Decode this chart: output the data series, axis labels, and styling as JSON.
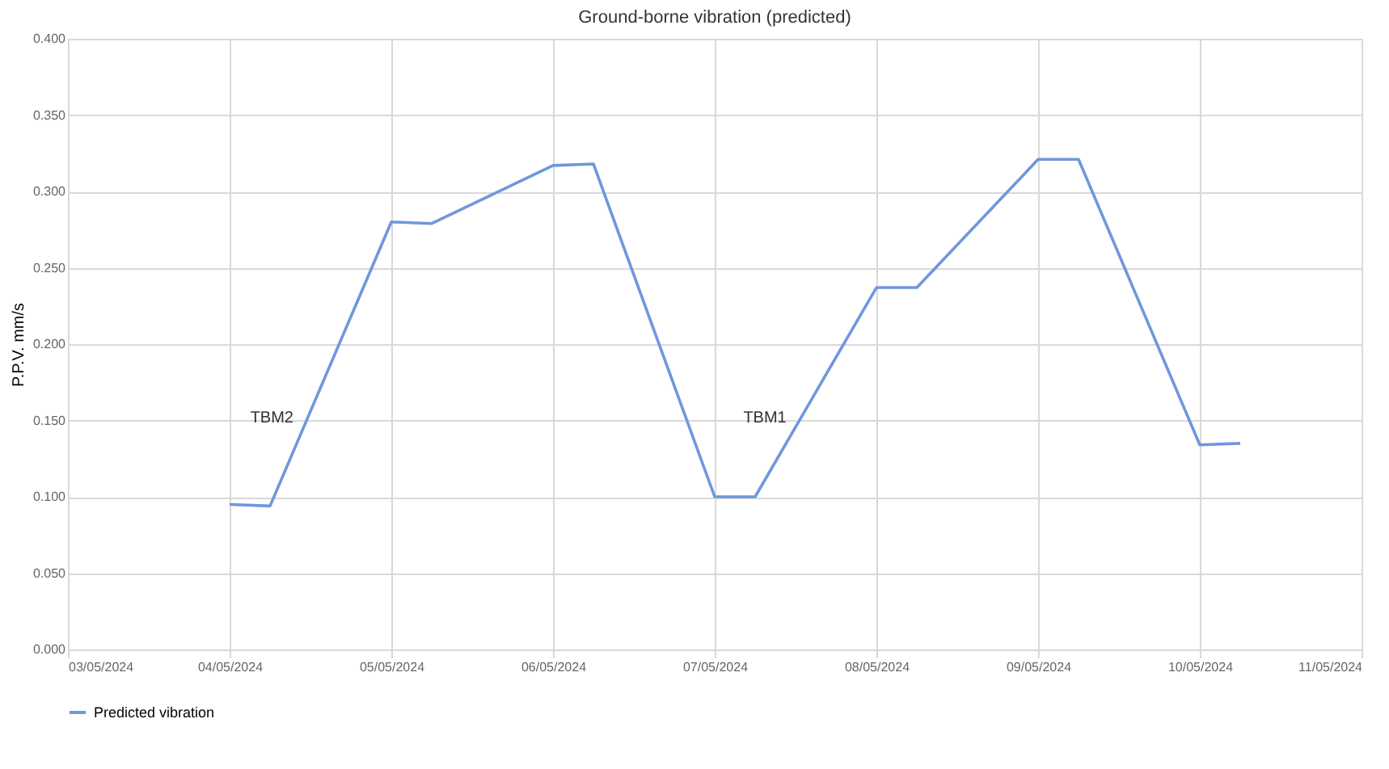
{
  "chart_data": {
    "type": "line",
    "title": "Ground-borne vibration (predicted)",
    "ylabel": "P.P.V. mm/s",
    "x": [
      "2024-05-04T00:00",
      "2024-05-04T06:00",
      "2024-05-05T00:00",
      "2024-05-05T06:00",
      "2024-05-06T00:00",
      "2024-05-06T06:00",
      "2024-05-07T00:00",
      "2024-05-07T06:00",
      "2024-05-08T00:00",
      "2024-05-08T06:00",
      "2024-05-09T00:00",
      "2024-05-09T06:00",
      "2024-05-10T00:00",
      "2024-05-10T06:00"
    ],
    "series": [
      {
        "name": "Predicted vibration",
        "color": "#6f97dc",
        "values": [
          0.095,
          0.094,
          0.28,
          0.279,
          0.317,
          0.318,
          0.1,
          0.1,
          0.237,
          0.237,
          0.321,
          0.321,
          0.134,
          0.135
        ]
      }
    ],
    "xlim": [
      "2024-05-03",
      "2024-05-11"
    ],
    "xticks": [
      {
        "value": "2024-05-03",
        "label": "03/05/2024"
      },
      {
        "value": "2024-05-04",
        "label": "04/05/2024"
      },
      {
        "value": "2024-05-05",
        "label": "05/05/2024"
      },
      {
        "value": "2024-05-06",
        "label": "06/05/2024"
      },
      {
        "value": "2024-05-07",
        "label": "07/05/2024"
      },
      {
        "value": "2024-05-08",
        "label": "08/05/2024"
      },
      {
        "value": "2024-05-09",
        "label": "09/05/2024"
      },
      {
        "value": "2024-05-10",
        "label": "10/05/2024"
      },
      {
        "value": "2024-05-11",
        "label": "11/05/2024"
      }
    ],
    "ylim": [
      0,
      0.4
    ],
    "yticks": [
      {
        "value": 0,
        "label": "0.000"
      },
      {
        "value": 0.05,
        "label": "0.050"
      },
      {
        "value": 0.1,
        "label": "0.100"
      },
      {
        "value": 0.15,
        "label": "0.150"
      },
      {
        "value": 0.2,
        "label": "0.200"
      },
      {
        "value": 0.25,
        "label": "0.250"
      },
      {
        "value": 0.3,
        "label": "0.300"
      },
      {
        "value": 0.35,
        "label": "0.350"
      },
      {
        "value": 0.4,
        "label": "0.400"
      }
    ],
    "annotations": [
      {
        "text": "TBM2",
        "x": "2024-05-04T11:24",
        "y": 0.15
      },
      {
        "text": "TBM1",
        "x": "2024-05-07T12:34",
        "y": 0.15
      }
    ],
    "grid": true,
    "legend": "bottom",
    "marker": "none",
    "line_style": "solid"
  }
}
